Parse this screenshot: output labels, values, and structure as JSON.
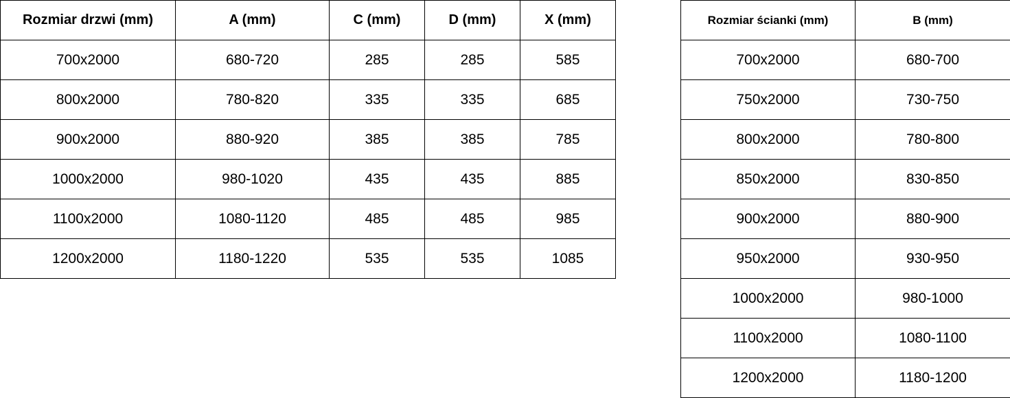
{
  "doors_table": {
    "headers": [
      "Rozmiar drzwi (mm)",
      "A (mm)",
      "C (mm)",
      "D (mm)",
      "X (mm)"
    ],
    "rows": [
      [
        "700x2000",
        "680-720",
        "285",
        "285",
        "585"
      ],
      [
        "800x2000",
        "780-820",
        "335",
        "335",
        "685"
      ],
      [
        "900x2000",
        "880-920",
        "385",
        "385",
        "785"
      ],
      [
        "1000x2000",
        "980-1020",
        "435",
        "435",
        "885"
      ],
      [
        "1100x2000",
        "1080-1120",
        "485",
        "485",
        "985"
      ],
      [
        "1200x2000",
        "1180-1220",
        "535",
        "535",
        "1085"
      ]
    ]
  },
  "walls_table": {
    "headers": [
      "Rozmiar ścianki (mm)",
      "B (mm)"
    ],
    "rows": [
      [
        "700x2000",
        "680-700"
      ],
      [
        "750x2000",
        "730-750"
      ],
      [
        "800x2000",
        "780-800"
      ],
      [
        "850x2000",
        "830-850"
      ],
      [
        "900x2000",
        "880-900"
      ],
      [
        "950x2000",
        "930-950"
      ],
      [
        "1000x2000",
        "980-1000"
      ],
      [
        "1100x2000",
        "1080-1100"
      ],
      [
        "1200x2000",
        "1180-1200"
      ]
    ]
  }
}
